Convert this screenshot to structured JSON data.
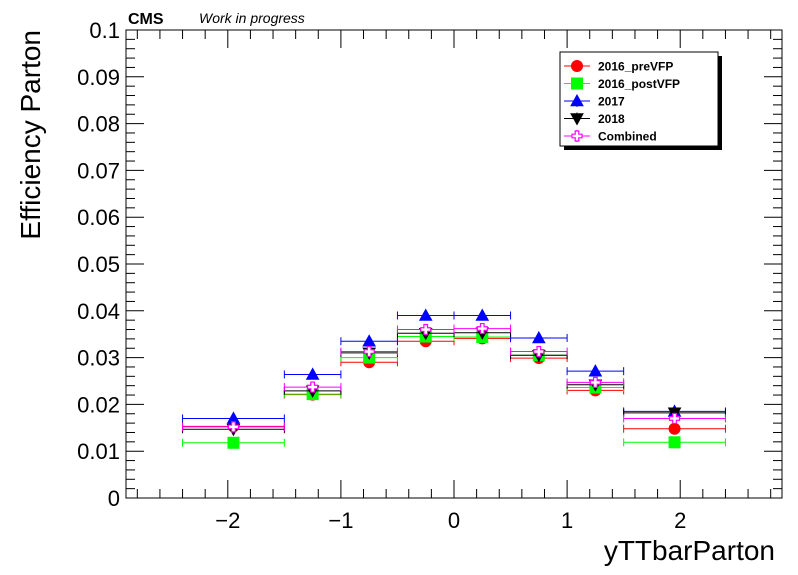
{
  "header": {
    "experiment": "CMS",
    "status": "Work in progress"
  },
  "chart_data": {
    "type": "scatter",
    "xlabel": "yTTbarParton",
    "ylabel": "Efficiency Parton",
    "xlim": [
      -2.9,
      2.9
    ],
    "ylim": [
      0,
      0.1
    ],
    "x_ticks": [
      -2,
      -1,
      0,
      1,
      2
    ],
    "x_tick_labels": [
      "−2",
      "−1",
      "0",
      "1",
      "2"
    ],
    "y_ticks": [
      0,
      0.01,
      0.02,
      0.03,
      0.04,
      0.05,
      0.06,
      0.07,
      0.08,
      0.09,
      0.1
    ],
    "y_tick_labels": [
      "0",
      "0.01",
      "0.02",
      "0.03",
      "0.04",
      "0.05",
      "0.06",
      "0.07",
      "0.08",
      "0.09",
      "0.1"
    ],
    "grid": false,
    "legend_position": "top-right",
    "series": [
      {
        "name": "2016_preVFP",
        "color": "#ff0000",
        "marker": "circle",
        "x": [
          -1.95,
          -1.25,
          -0.75,
          -0.25,
          0.25,
          0.75,
          1.25,
          1.95
        ],
        "xerr_low": [
          0.45,
          0.25,
          0.25,
          0.25,
          0.25,
          0.25,
          0.25,
          0.45
        ],
        "xerr_high": [
          0.45,
          0.25,
          0.25,
          0.25,
          0.25,
          0.25,
          0.25,
          0.45
        ],
        "y": [
          0.0153,
          0.0221,
          0.029,
          0.0335,
          0.0341,
          0.0299,
          0.023,
          0.0148
        ],
        "yerr": [
          0.0007,
          0.0004,
          0.0004,
          0.0004,
          0.0004,
          0.0004,
          0.0004,
          0.0007
        ]
      },
      {
        "name": "2016_postVFP",
        "color": "#00ff00",
        "marker": "square",
        "x": [
          -1.95,
          -1.25,
          -0.75,
          -0.25,
          0.25,
          0.75,
          1.25,
          1.95
        ],
        "xerr_low": [
          0.45,
          0.25,
          0.25,
          0.25,
          0.25,
          0.25,
          0.25,
          0.45
        ],
        "xerr_high": [
          0.45,
          0.25,
          0.25,
          0.25,
          0.25,
          0.25,
          0.25,
          0.45
        ],
        "y": [
          0.0118,
          0.0222,
          0.03,
          0.0345,
          0.0344,
          0.0305,
          0.0236,
          0.0119
        ],
        "yerr": [
          0.0006,
          0.0004,
          0.0004,
          0.0004,
          0.0004,
          0.0004,
          0.0004,
          0.0006
        ]
      },
      {
        "name": "2017",
        "color": "#0000ff",
        "marker": "triangle-up",
        "x": [
          -1.95,
          -1.25,
          -0.75,
          -0.25,
          0.25,
          0.75,
          1.25,
          1.95
        ],
        "xerr_low": [
          0.45,
          0.25,
          0.25,
          0.25,
          0.25,
          0.25,
          0.25,
          0.45
        ],
        "xerr_high": [
          0.45,
          0.25,
          0.25,
          0.25,
          0.25,
          0.25,
          0.25,
          0.45
        ],
        "y": [
          0.017,
          0.0264,
          0.0335,
          0.039,
          0.039,
          0.0342,
          0.0271,
          0.0185
        ],
        "yerr": [
          0.0007,
          0.0004,
          0.0004,
          0.0004,
          0.0004,
          0.0004,
          0.0004,
          0.0007
        ]
      },
      {
        "name": "2018",
        "color": "#000000",
        "marker": "triangle-down",
        "x": [
          -1.95,
          -1.25,
          -0.75,
          -0.25,
          0.25,
          0.75,
          1.25,
          1.95
        ],
        "xerr_low": [
          0.45,
          0.25,
          0.25,
          0.25,
          0.25,
          0.25,
          0.25,
          0.45
        ],
        "xerr_high": [
          0.45,
          0.25,
          0.25,
          0.25,
          0.25,
          0.25,
          0.25,
          0.45
        ],
        "y": [
          0.0147,
          0.0229,
          0.031,
          0.0352,
          0.0353,
          0.0305,
          0.0242,
          0.0182
        ],
        "yerr": [
          0.0006,
          0.0004,
          0.0004,
          0.0004,
          0.0004,
          0.0004,
          0.0004,
          0.0006
        ]
      },
      {
        "name": "Combined",
        "color": "#ff00ff",
        "marker": "open-cross",
        "x": [
          -1.95,
          -1.25,
          -0.75,
          -0.25,
          0.25,
          0.75,
          1.25,
          1.95
        ],
        "xerr_low": [
          0.45,
          0.25,
          0.25,
          0.25,
          0.25,
          0.25,
          0.25,
          0.45
        ],
        "xerr_high": [
          0.45,
          0.25,
          0.25,
          0.25,
          0.25,
          0.25,
          0.25,
          0.45
        ],
        "y": [
          0.0152,
          0.0237,
          0.0313,
          0.036,
          0.0362,
          0.0313,
          0.0247,
          0.017
        ],
        "yerr": [
          0.0003,
          0.0002,
          0.0002,
          0.0002,
          0.0002,
          0.0002,
          0.0002,
          0.0003
        ]
      }
    ]
  }
}
